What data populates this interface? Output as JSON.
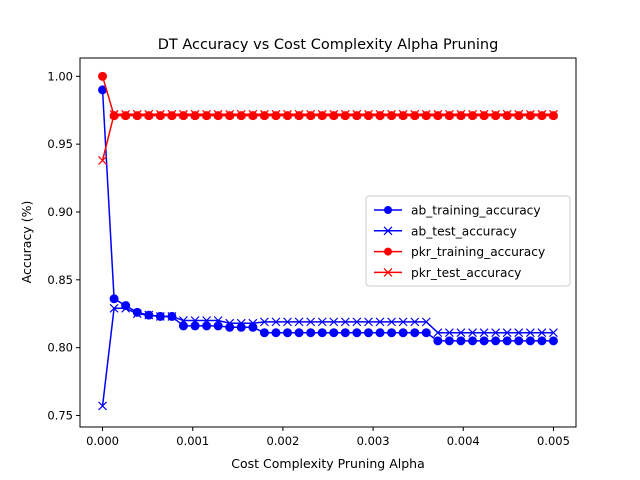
{
  "chart_data": {
    "type": "line",
    "title": "DT Accuracy vs Cost Complexity Alpha Pruning",
    "xlabel": "Cost Complexity Pruning Alpha",
    "ylabel": "Accuracy (%)",
    "xlim": [
      -0.00025,
      0.00525
    ],
    "ylim": [
      0.7415,
      1.0135
    ],
    "xticks": [
      0.0,
      0.001,
      0.002,
      0.003,
      0.004,
      0.005
    ],
    "xtick_labels": [
      "0.000",
      "0.001",
      "0.002",
      "0.003",
      "0.004",
      "0.005"
    ],
    "yticks": [
      0.75,
      0.8,
      0.85,
      0.9,
      0.95,
      1.0
    ],
    "ytick_labels": [
      "0.75",
      "0.80",
      "0.85",
      "0.90",
      "0.95",
      "1.00"
    ],
    "grid": false,
    "legend_position": "center-right",
    "x": [
      0.0,
      0.000128,
      0.000256,
      0.000385,
      0.000513,
      0.000641,
      0.000769,
      0.000897,
      0.001026,
      0.001154,
      0.001282,
      0.00141,
      0.001538,
      0.001667,
      0.001795,
      0.001923,
      0.002051,
      0.002179,
      0.002308,
      0.002436,
      0.002564,
      0.002692,
      0.00282,
      0.002949,
      0.003077,
      0.003205,
      0.003333,
      0.003462,
      0.00359,
      0.003718,
      0.003846,
      0.003974,
      0.004103,
      0.004231,
      0.004359,
      0.004487,
      0.004615,
      0.004744,
      0.004872,
      0.005
    ],
    "series": [
      {
        "name": "ab_training_accuracy",
        "color": "#0000ff",
        "marker": "circle",
        "values": [
          0.99,
          0.836,
          0.831,
          0.826,
          0.824,
          0.823,
          0.823,
          0.816,
          0.816,
          0.816,
          0.816,
          0.815,
          0.815,
          0.815,
          0.811,
          0.811,
          0.811,
          0.811,
          0.811,
          0.811,
          0.811,
          0.811,
          0.811,
          0.811,
          0.811,
          0.811,
          0.811,
          0.811,
          0.811,
          0.805,
          0.805,
          0.805,
          0.805,
          0.805,
          0.805,
          0.805,
          0.805,
          0.805,
          0.805,
          0.805
        ]
      },
      {
        "name": "ab_test_accuracy",
        "color": "#0000ff",
        "marker": "x",
        "values": [
          0.757,
          0.829,
          0.829,
          0.825,
          0.824,
          0.823,
          0.823,
          0.82,
          0.82,
          0.82,
          0.82,
          0.818,
          0.818,
          0.818,
          0.819,
          0.819,
          0.819,
          0.819,
          0.819,
          0.819,
          0.819,
          0.819,
          0.819,
          0.819,
          0.819,
          0.819,
          0.819,
          0.819,
          0.819,
          0.811,
          0.811,
          0.811,
          0.811,
          0.811,
          0.811,
          0.811,
          0.811,
          0.811,
          0.811,
          0.811
        ]
      },
      {
        "name": "pkr_training_accuracy",
        "color": "#ff0000",
        "marker": "circle",
        "values": [
          1.0,
          0.971,
          0.971,
          0.971,
          0.971,
          0.971,
          0.971,
          0.971,
          0.971,
          0.971,
          0.971,
          0.971,
          0.971,
          0.971,
          0.971,
          0.971,
          0.971,
          0.971,
          0.971,
          0.971,
          0.971,
          0.971,
          0.971,
          0.971,
          0.971,
          0.971,
          0.971,
          0.971,
          0.971,
          0.971,
          0.971,
          0.971,
          0.971,
          0.971,
          0.971,
          0.971,
          0.971,
          0.971,
          0.971,
          0.971
        ]
      },
      {
        "name": "pkr_test_accuracy",
        "color": "#ff0000",
        "marker": "x",
        "values": [
          0.938,
          0.972,
          0.972,
          0.972,
          0.972,
          0.972,
          0.972,
          0.972,
          0.972,
          0.972,
          0.972,
          0.972,
          0.972,
          0.972,
          0.972,
          0.972,
          0.972,
          0.972,
          0.972,
          0.972,
          0.972,
          0.972,
          0.972,
          0.972,
          0.972,
          0.972,
          0.972,
          0.972,
          0.972,
          0.972,
          0.972,
          0.972,
          0.972,
          0.972,
          0.972,
          0.972,
          0.972,
          0.972,
          0.972,
          0.972
        ]
      }
    ]
  }
}
